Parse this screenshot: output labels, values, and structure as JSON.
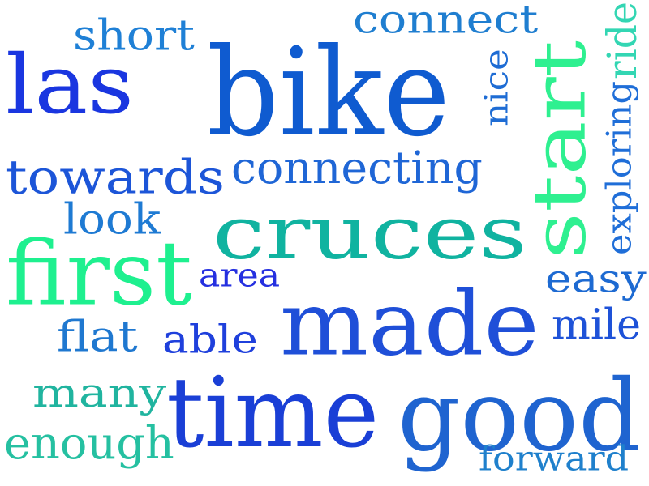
{
  "words": [
    {
      "text": "bike",
      "color": "#0f5bd0"
    },
    {
      "text": "cruces",
      "color": "#10b3a0"
    },
    {
      "text": "made",
      "color": "#1f4fd8"
    },
    {
      "text": "time",
      "color": "#1a3fd6"
    },
    {
      "text": "good",
      "color": "#1f64d0"
    },
    {
      "text": "first",
      "color": "#1ef08f"
    },
    {
      "text": "las",
      "color": "#1a36e0"
    },
    {
      "text": "start",
      "color": "#2ef090"
    },
    {
      "text": "towards",
      "color": "#1c55d8"
    },
    {
      "text": "connecting",
      "color": "#1f66d6"
    },
    {
      "text": "connect",
      "color": "#1f7ed0"
    },
    {
      "text": "short",
      "color": "#1f80d6"
    },
    {
      "text": "nice",
      "color": "#1e6cd4"
    },
    {
      "text": "exploring",
      "color": "#1f6ed8"
    },
    {
      "text": "ride",
      "color": "#33d6b3"
    },
    {
      "text": "look",
      "color": "#1e7ad3"
    },
    {
      "text": "area",
      "color": "#2530e0"
    },
    {
      "text": "easy",
      "color": "#1d6ad2"
    },
    {
      "text": "flat",
      "color": "#1f78d0"
    },
    {
      "text": "able",
      "color": "#1f40dc"
    },
    {
      "text": "mile",
      "color": "#1e52d8"
    },
    {
      "text": "many",
      "color": "#20b49f"
    },
    {
      "text": "enough",
      "color": "#25c0a1"
    },
    {
      "text": "forward",
      "color": "#1f80cc"
    }
  ]
}
